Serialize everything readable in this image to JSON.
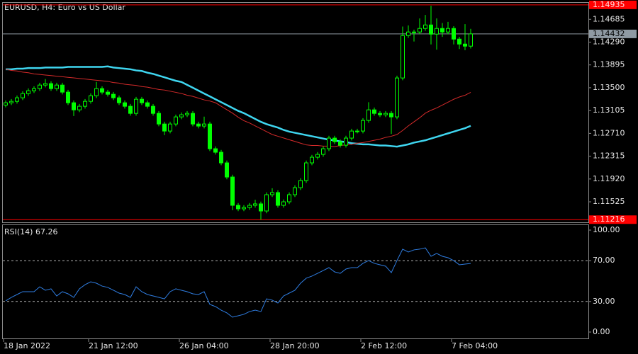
{
  "chart_data": [
    {
      "type": "candlestick",
      "title": "EURUSD, H4:  Euro vs US Dollar",
      "color": "#00ff00",
      "categories": [
        "18 Jan 2022",
        null,
        null,
        null,
        null,
        null,
        null,
        null,
        null,
        null,
        null,
        null,
        null,
        null,
        null,
        "21 Jan 12:00",
        null,
        null,
        null,
        null,
        null,
        null,
        null,
        null,
        null,
        null,
        null,
        null,
        null,
        null,
        null,
        "26 Jan 04:00",
        null,
        null,
        null,
        null,
        null,
        null,
        null,
        null,
        null,
        null,
        null,
        null,
        null,
        null,
        null,
        "28 Jan 20:00",
        null,
        null,
        null,
        null,
        null,
        null,
        null,
        null,
        null,
        null,
        null,
        null,
        null,
        null,
        null,
        "2 Feb 12:00",
        null,
        null,
        null,
        null,
        null,
        null,
        null,
        null,
        null,
        null,
        null,
        null,
        null,
        null,
        null,
        "7 Feb 04:00",
        null,
        null,
        null
      ],
      "open": [
        1.132,
        1.1324,
        1.13264,
        1.13326,
        1.13399,
        1.13448,
        1.13485,
        1.13546,
        1.13571,
        1.13485,
        1.13546,
        1.13424,
        1.1324,
        1.13117,
        1.13179,
        1.13264,
        1.13362,
        1.13485,
        1.13424,
        1.13387,
        1.13326,
        1.1324,
        1.13179,
        1.13056,
        1.13301,
        1.1324,
        1.13179,
        1.13056,
        1.12872,
        1.1275,
        1.12872,
        1.12995,
        1.13032,
        1.13056,
        1.12872,
        1.12836,
        1.12872,
        1.12444,
        1.12383,
        1.12199,
        1.11954,
        1.11464,
        1.11403,
        1.11427,
        1.11464,
        1.11489,
        1.11366,
        1.11648,
        1.11685,
        1.11464,
        1.11525,
        1.11648,
        1.1177,
        1.11893,
        1.12199,
        1.12297,
        1.12346,
        1.12444,
        1.12628,
        1.12566,
        1.12505,
        1.12628,
        1.1275,
        1.1275,
        1.12934,
        1.13117,
        1.13056,
        1.13032,
        1.13056,
        1.12995,
        1.13669,
        1.14403,
        1.14465,
        1.14465,
        1.14526,
        1.14587,
        1.14428,
        1.14526,
        1.14465,
        1.14526,
        1.14342,
        1.14256,
        1.1422
      ],
      "high": [
        1.1328,
        1.13304,
        1.13366,
        1.13439,
        1.13488,
        1.13525,
        1.13586,
        1.1365,
        1.13611,
        1.13586,
        1.13586,
        1.13464,
        1.1328,
        1.13219,
        1.13304,
        1.13402,
        1.136,
        1.13525,
        1.13464,
        1.13427,
        1.13366,
        1.1328,
        1.13219,
        1.13341,
        1.13341,
        1.1328,
        1.13219,
        1.13096,
        1.12912,
        1.12912,
        1.13035,
        1.13072,
        1.13096,
        1.13096,
        1.12912,
        1.13,
        1.12912,
        1.12484,
        1.12423,
        1.12239,
        1.11994,
        1.11504,
        1.11467,
        1.11504,
        1.1156,
        1.11529,
        1.11688,
        1.1176,
        1.11725,
        1.11565,
        1.11688,
        1.1181,
        1.11933,
        1.12239,
        1.12337,
        1.12386,
        1.12484,
        1.12668,
        1.12668,
        1.12606,
        1.12668,
        1.1279,
        1.1279,
        1.12974,
        1.1325,
        1.13157,
        1.13096,
        1.13096,
        1.13096,
        1.13709,
        1.1456,
        1.1458,
        1.14505,
        1.147,
        1.1476,
        1.1492,
        1.147,
        1.1462,
        1.1464,
        1.14566,
        1.14382,
        1.146,
        1.1452
      ],
      "low": [
        1.1316,
        1.132,
        1.13224,
        1.13286,
        1.13359,
        1.13408,
        1.13445,
        1.13506,
        1.13445,
        1.13445,
        1.13384,
        1.132,
        1.1301,
        1.13077,
        1.13139,
        1.13224,
        1.13322,
        1.13384,
        1.13347,
        1.13286,
        1.132,
        1.13139,
        1.13016,
        1.13016,
        1.132,
        1.13139,
        1.13016,
        1.12832,
        1.1268,
        1.1271,
        1.12832,
        1.12955,
        1.12992,
        1.12832,
        1.12796,
        1.12796,
        1.12404,
        1.12343,
        1.12159,
        1.11914,
        1.1138,
        1.11363,
        1.11363,
        1.11387,
        1.11424,
        1.11216,
        1.11326,
        1.11608,
        1.11424,
        1.11424,
        1.11485,
        1.11608,
        1.1173,
        1.11853,
        1.12159,
        1.12257,
        1.12306,
        1.12404,
        1.12526,
        1.12465,
        1.12465,
        1.12588,
        1.1271,
        1.1271,
        1.12894,
        1.13016,
        1.12992,
        1.12992,
        1.127,
        1.12955,
        1.13629,
        1.14363,
        1.143,
        1.14425,
        1.14486,
        1.1425,
        1.1416,
        1.1438,
        1.14425,
        1.1425,
        1.1417,
        1.1415,
        1.1418
      ],
      "close": [
        1.1324,
        1.13264,
        1.13326,
        1.13399,
        1.13448,
        1.13485,
        1.13546,
        1.13571,
        1.13485,
        1.13546,
        1.13424,
        1.1324,
        1.13117,
        1.13179,
        1.13264,
        1.13362,
        1.13485,
        1.13424,
        1.13387,
        1.13326,
        1.1324,
        1.13179,
        1.13056,
        1.13301,
        1.1324,
        1.13179,
        1.13056,
        1.12872,
        1.1275,
        1.12872,
        1.12995,
        1.13032,
        1.13056,
        1.12872,
        1.12836,
        1.12872,
        1.12444,
        1.12383,
        1.12199,
        1.11954,
        1.11464,
        1.11403,
        1.11427,
        1.11464,
        1.11489,
        1.11366,
        1.11648,
        1.11685,
        1.11464,
        1.11525,
        1.11648,
        1.1177,
        1.11893,
        1.12199,
        1.12297,
        1.12346,
        1.12444,
        1.12628,
        1.12566,
        1.12505,
        1.12628,
        1.1275,
        1.1275,
        1.12934,
        1.13117,
        1.13056,
        1.13032,
        1.13056,
        1.12995,
        1.13669,
        1.14403,
        1.14465,
        1.14465,
        1.14526,
        1.14587,
        1.14428,
        1.14526,
        1.14465,
        1.14526,
        1.14342,
        1.14256,
        1.1422,
        1.14432
      ],
      "overlays": [
        {
          "color": "#3fd6f0",
          "values": [
            1.1382,
            1.1382,
            1.1383,
            1.1383,
            1.1384,
            1.1384,
            1.1384,
            1.1385,
            1.1385,
            1.1385,
            1.1385,
            1.1386,
            1.1386,
            1.1386,
            1.1386,
            1.1386,
            1.1386,
            1.1386,
            1.1387,
            1.1385,
            1.1384,
            1.1383,
            1.1382,
            1.138,
            1.1379,
            1.1376,
            1.1374,
            1.1371,
            1.1368,
            1.1365,
            1.1362,
            1.136,
            1.1355,
            1.135,
            1.1345,
            1.134,
            1.1335,
            1.133,
            1.1325,
            1.132,
            1.1315,
            1.131,
            1.1306,
            1.1301,
            1.1296,
            1.1291,
            1.1287,
            1.1284,
            1.1281,
            1.1277,
            1.1274,
            1.1272,
            1.127,
            1.1268,
            1.1266,
            1.1264,
            1.1262,
            1.126,
            1.1259,
            1.1257,
            1.1256,
            1.1254,
            1.1253,
            1.1252,
            1.1252,
            1.1251,
            1.125,
            1.125,
            1.1249,
            1.1248,
            1.125,
            1.1252,
            1.1255,
            1.1257,
            1.1259,
            1.1262,
            1.1265,
            1.1268,
            1.1271,
            1.1274,
            1.1277,
            1.128,
            1.1284
          ]
        },
        {
          "color": "#d42a2a",
          "values": [
            1.1382,
            1.138,
            1.1379,
            1.1377,
            1.1376,
            1.1374,
            1.1373,
            1.1372,
            1.1371,
            1.137,
            1.1369,
            1.1368,
            1.1367,
            1.1366,
            1.1365,
            1.1364,
            1.1363,
            1.1362,
            1.1361,
            1.1359,
            1.1358,
            1.1356,
            1.1355,
            1.1354,
            1.1352,
            1.1351,
            1.1349,
            1.1347,
            1.1346,
            1.1344,
            1.1342,
            1.134,
            1.1337,
            1.1335,
            1.1332,
            1.1329,
            1.1327,
            1.1324,
            1.1318,
            1.1312,
            1.1306,
            1.1299,
            1.1293,
            1.1289,
            1.1284,
            1.1279,
            1.1274,
            1.1269,
            1.1266,
            1.1263,
            1.126,
            1.1257,
            1.1254,
            1.1251,
            1.125,
            1.125,
            1.1249,
            1.1249,
            1.1248,
            1.125,
            1.1251,
            1.1252,
            1.1254,
            1.1255,
            1.1257,
            1.1259,
            1.1261,
            1.1264,
            1.1266,
            1.1269,
            1.1276,
            1.1284,
            1.1291,
            1.1298,
            1.1306,
            1.1311,
            1.1315,
            1.132,
            1.1325,
            1.133,
            1.1334,
            1.1337,
            1.1342
          ]
        }
      ],
      "hlines": [
        {
          "value": 1.14935,
          "color": "#ff0000"
        },
        {
          "value": 1.14432,
          "color": "#8f9aa3"
        },
        {
          "value": 1.11216,
          "color": "#ff0000"
        }
      ],
      "ylim": [
        1.1117,
        1.1497
      ],
      "yticks": [
        1.14685,
        {
          "value": 1.1429,
          "label": "1.14290"
        },
        1.13895,
        {
          "value": 1.135,
          "label": "1.13500"
        },
        1.13105,
        {
          "value": 1.1271,
          "label": "1.12710"
        },
        1.12315,
        {
          "value": 1.1192,
          "label": "1.11920"
        },
        1.11525
      ]
    },
    {
      "type": "line",
      "title": "RSI(14)",
      "color": "#2f7de1",
      "values": [
        30.6,
        34.0,
        36.8,
        39.6,
        39.6,
        39.6,
        44.4,
        41.0,
        42.4,
        35.4,
        39.6,
        37.5,
        34.0,
        42.4,
        46.5,
        49.3,
        47.9,
        45.1,
        43.8,
        41.0,
        38.2,
        36.8,
        34.0,
        44.4,
        39.6,
        36.8,
        35.4,
        34.0,
        32.6,
        39.6,
        42.4,
        41.0,
        39.6,
        37.5,
        36.8,
        39.6,
        27.1,
        25.0,
        21.5,
        18.8,
        14.6,
        16.0,
        17.4,
        20.1,
        21.5,
        20.1,
        32.6,
        31.3,
        28.5,
        35.4,
        38.2,
        41.0,
        47.9,
        52.8,
        54.9,
        57.6,
        60.4,
        63.2,
        59.0,
        57.6,
        61.8,
        63.2,
        63.2,
        67.4,
        70.1,
        67.4,
        66.0,
        64.6,
        58.3,
        70.1,
        81.3,
        78.5,
        80.6,
        81.3,
        82.6,
        74.3,
        77.1,
        74.3,
        72.9,
        70.1,
        66.0,
        66.7,
        67.26
      ],
      "levels": [
        70,
        30
      ],
      "ylim": [
        -6.25,
        104.86
      ],
      "yticks": [
        {
          "value": 100,
          "label": "100.00"
        },
        {
          "value": 70,
          "label": "70.00"
        },
        {
          "value": 30,
          "label": "30.00"
        },
        {
          "value": 0,
          "label": "0.00"
        }
      ]
    }
  ]
}
